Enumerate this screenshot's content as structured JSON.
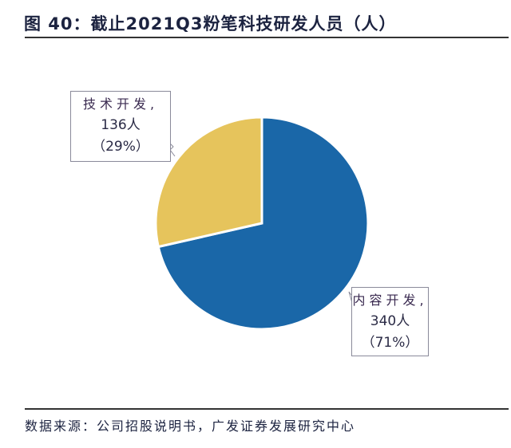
{
  "header": {
    "title": "图 40：截止2021Q3粉笔科技研发人员（人）"
  },
  "footer": {
    "source": "数据来源：公司招股说明书，广发证券发展研究中心"
  },
  "labels": {
    "tech": {
      "name": "技术开发,",
      "value": "136人",
      "pct": "（29%）"
    },
    "content": {
      "name": "内容开发,",
      "value": "340人",
      "pct": "（71%）"
    }
  },
  "colors": {
    "content": "#1a67a8",
    "tech": "#e6c45c"
  },
  "chart_data": {
    "type": "pie",
    "title": "图 40：截止2021Q3粉笔科技研发人员（人）",
    "categories": [
      "内容开发",
      "技术开发"
    ],
    "values": [
      340,
      136
    ],
    "percentages": [
      71,
      29
    ],
    "colors": [
      "#1a67a8",
      "#e6c45c"
    ],
    "start_angle": "12 o'clock, clockwise",
    "legend": "none (data labels in callout boxes)",
    "source": "数据来源：公司招股说明书，广发证券发展研究中心"
  }
}
